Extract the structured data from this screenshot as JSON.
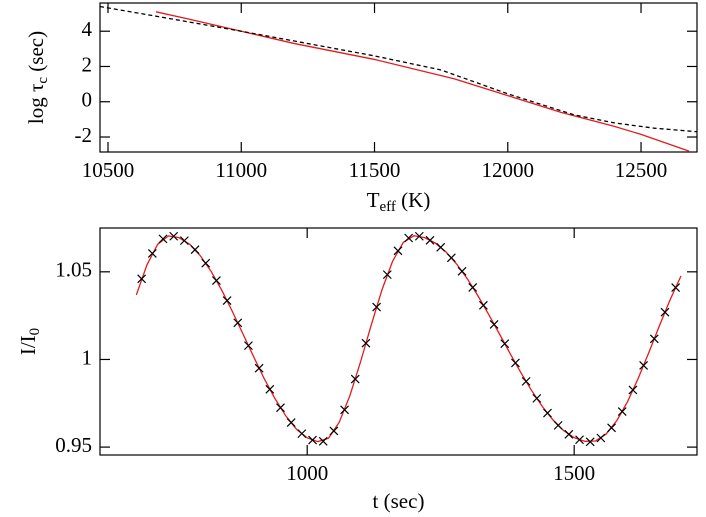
{
  "chart_data": [
    {
      "type": "line",
      "xlabel": {
        "text": "T",
        "sub": "eff",
        "suffix": " (K)"
      },
      "ylabel": {
        "text": "log τ",
        "sub": "c",
        "suffix": " (sec)"
      },
      "xlim": [
        10470,
        12710
      ],
      "ylim": [
        -2.85,
        5.6
      ],
      "xticks": [
        10500,
        11000,
        11500,
        12000,
        12500
      ],
      "yticks": [
        -2,
        0,
        2,
        4
      ],
      "series": [
        {
          "color": "#e41a1c",
          "dash": false,
          "x": [
            10680,
            10800,
            11000,
            11200,
            11500,
            11800,
            12000,
            12200,
            12400,
            12500,
            12680
          ],
          "values": [
            5.1,
            4.7,
            4.0,
            3.3,
            2.4,
            1.3,
            0.35,
            -0.6,
            -1.4,
            -1.85,
            -2.8
          ]
        },
        {
          "color": "#000000",
          "dash": true,
          "x": [
            10470,
            10700,
            11000,
            11250,
            11500,
            11750,
            12000,
            12250,
            12400,
            12550,
            12710
          ],
          "values": [
            5.4,
            4.8,
            4.0,
            3.3,
            2.6,
            1.8,
            0.45,
            -0.75,
            -1.2,
            -1.5,
            -1.7
          ]
        }
      ]
    },
    {
      "type": "line",
      "xlabel": {
        "text": "t (sec)"
      },
      "ylabel": {
        "text": "I/I",
        "sub": "0"
      },
      "xlim": [
        612,
        1730
      ],
      "ylim": [
        0.9455,
        1.075
      ],
      "xticks": [
        1000,
        1500
      ],
      "yticks": [
        0.95,
        1,
        1.05
      ],
      "series": [
        {
          "color": "#e41a1c",
          "dash": false,
          "x": [
            680,
            700,
            720,
            740,
            760,
            780,
            800,
            820,
            840,
            860,
            880,
            900,
            920,
            940,
            960,
            980,
            1000,
            1020,
            1040,
            1060,
            1080,
            1100,
            1120,
            1140,
            1160,
            1180,
            1200,
            1220,
            1240,
            1260,
            1280,
            1300,
            1320,
            1340,
            1360,
            1380,
            1400,
            1420,
            1440,
            1460,
            1480,
            1500,
            1520,
            1540,
            1560,
            1580,
            1600,
            1620,
            1640,
            1660,
            1680,
            1700
          ],
          "values": [
            1.0368,
            1.054,
            1.0657,
            1.0705,
            1.0695,
            1.0657,
            1.0591,
            1.0503,
            1.0395,
            1.0273,
            1.0144,
            1.0014,
            0.9888,
            0.9775,
            0.9678,
            0.9602,
            0.9553,
            0.9531,
            0.9551,
            0.9642,
            0.9794,
            0.9987,
            1.0197,
            1.0397,
            1.0561,
            1.0668,
            1.0706,
            1.0695,
            1.0664,
            1.0613,
            1.0544,
            1.046,
            1.0362,
            1.0256,
            1.0146,
            1.0034,
            0.9926,
            0.9824,
            0.9733,
            0.9656,
            0.9595,
            0.9554,
            0.9533,
            0.9535,
            0.9575,
            0.9652,
            0.976,
            0.9893,
            1.0041,
            1.0195,
            1.0343,
            1.0476
          ]
        },
        {
          "color": "#000000",
          "marker": "x",
          "x": [
            690,
            710,
            730,
            750,
            770,
            790,
            810,
            830,
            850,
            870,
            890,
            910,
            930,
            950,
            970,
            990,
            1010,
            1030,
            1050,
            1070,
            1090,
            1110,
            1130,
            1150,
            1170,
            1190,
            1210,
            1230,
            1250,
            1270,
            1290,
            1310,
            1330,
            1350,
            1370,
            1390,
            1410,
            1430,
            1450,
            1470,
            1490,
            1510,
            1530,
            1550,
            1570,
            1590,
            1610,
            1630,
            1650,
            1670,
            1690
          ],
          "values": [
            1.046,
            1.0605,
            1.0688,
            1.0703,
            1.0678,
            1.0626,
            1.0549,
            1.045,
            1.0336,
            1.0209,
            1.0079,
            0.995,
            0.983,
            0.9725,
            0.964,
            0.9577,
            0.954,
            0.9533,
            0.9592,
            0.9713,
            0.9888,
            1.0093,
            1.0299,
            1.0484,
            1.062,
            1.0693,
            1.0703,
            1.068,
            1.064,
            1.058,
            1.0503,
            1.0411,
            1.0309,
            1.02,
            1.009,
            0.998,
            0.9875,
            0.9778,
            0.9694,
            0.9624,
            0.9573,
            0.9542,
            0.953,
            0.9552,
            0.961,
            0.9703,
            0.9826,
            0.9966,
            1.0118,
            1.027,
            1.041
          ]
        }
      ]
    }
  ]
}
